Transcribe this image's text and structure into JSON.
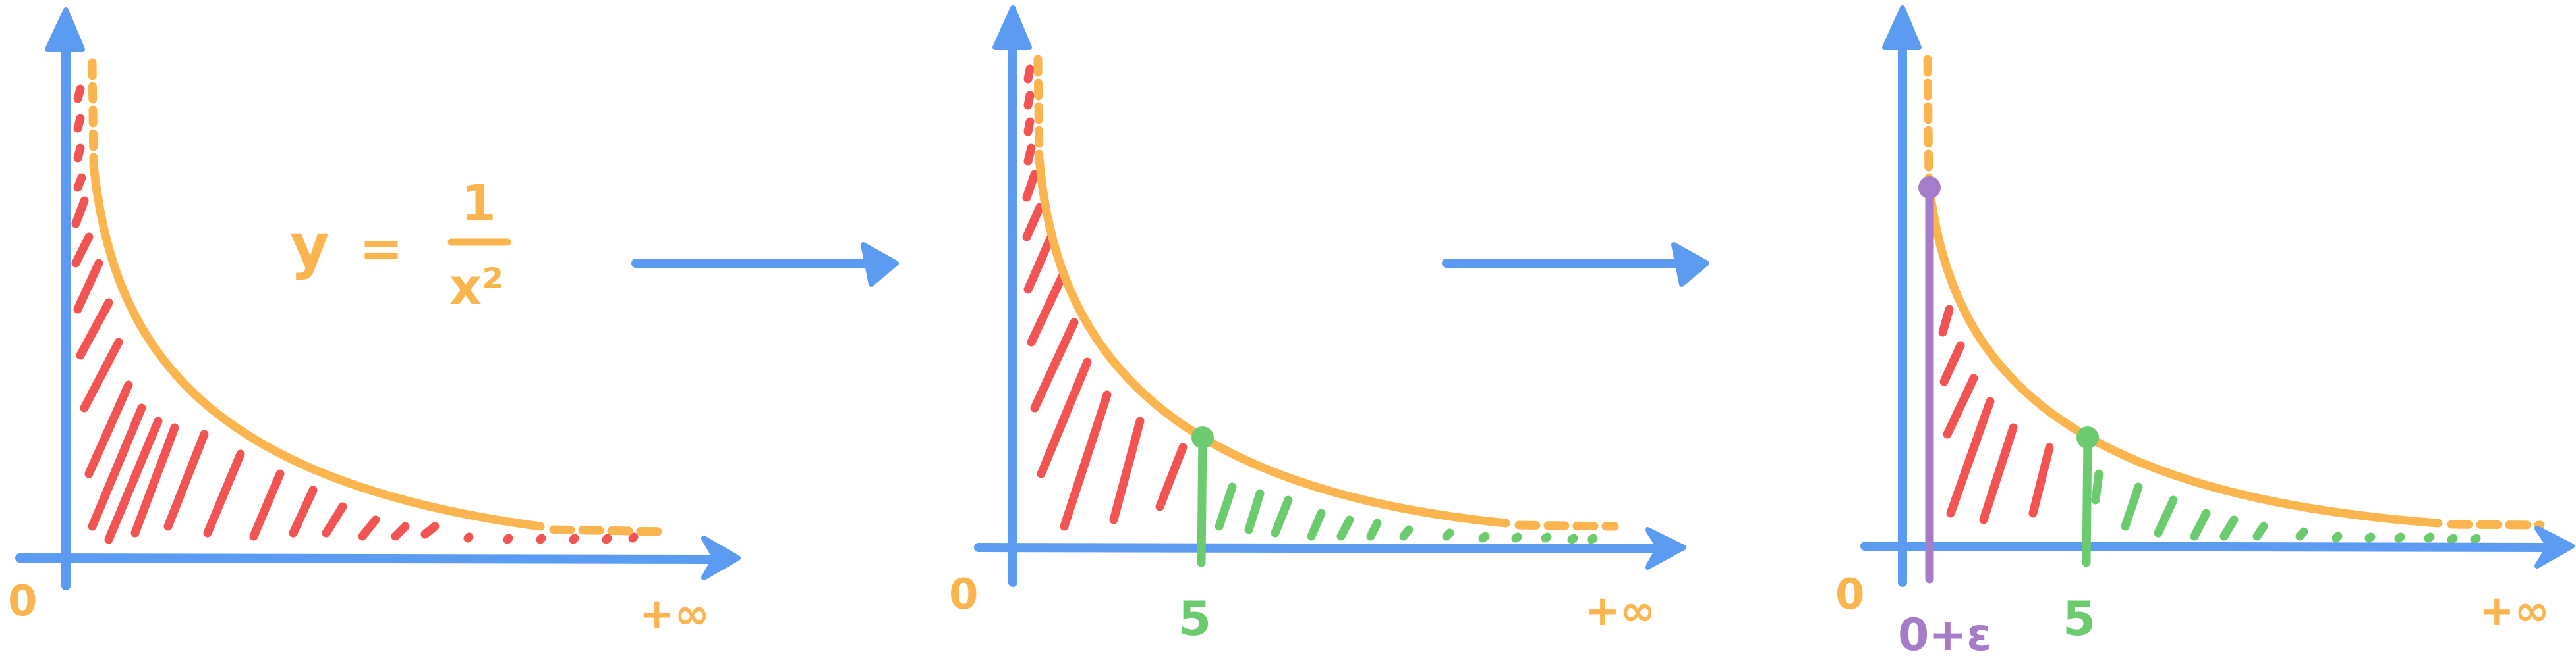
{
  "colors": {
    "axis": "#5b9cf2",
    "curve": "#fbb54f",
    "hatch_red": "#f25353",
    "hatch_green": "#6ccb6e",
    "epsilon_purple": "#a67cc9",
    "arrow": "#5b9cf2"
  },
  "panel1": {
    "origin_label": "0",
    "infinity_label": "+∞",
    "equation_y": "y",
    "equation_eq": "=",
    "equation_num": "1",
    "equation_den": "x²"
  },
  "panel2": {
    "origin_label": "0",
    "cut_label": "5",
    "infinity_label": "+∞"
  },
  "panel3": {
    "origin_label": "0",
    "epsilon_label": "0+ε",
    "cut_label": "5",
    "infinity_label": "+∞"
  },
  "arrows": [
    {
      "icon": "right-arrow-icon"
    },
    {
      "icon": "right-arrow-icon"
    }
  ]
}
